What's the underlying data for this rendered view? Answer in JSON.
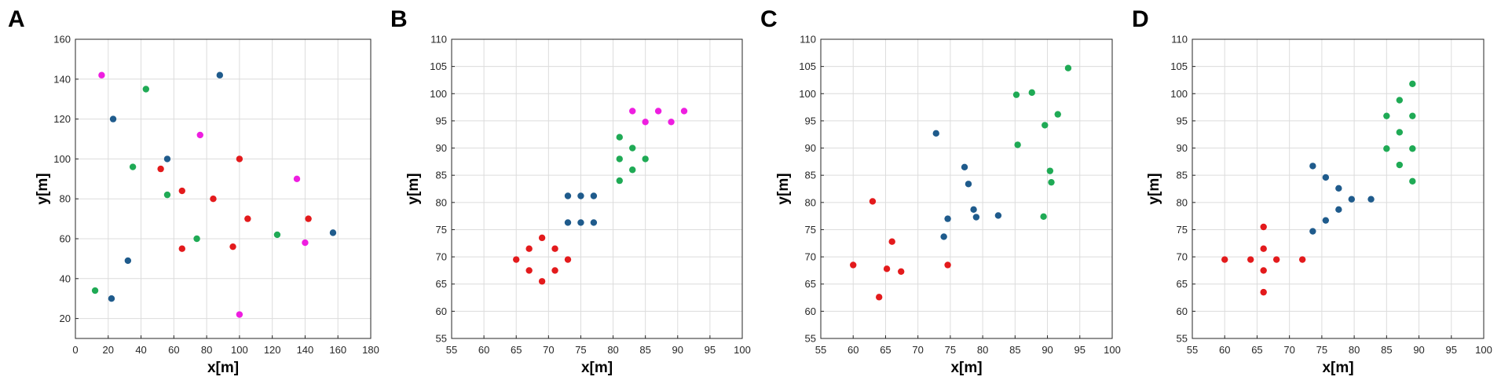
{
  "colors": {
    "red": "#e31a1c",
    "blue": "#1f5b8c",
    "green": "#1faa55",
    "magenta": "#ee1ee0"
  },
  "chart_data": [
    {
      "type": "scatter",
      "panel": "A",
      "xlabel": "x[m]",
      "ylabel": "y[m]",
      "xlim": [
        0,
        180
      ],
      "ylim": [
        10,
        160
      ],
      "xticks": [
        0,
        20,
        40,
        60,
        80,
        100,
        120,
        140,
        160,
        180
      ],
      "yticks": [
        20,
        40,
        60,
        80,
        100,
        120,
        140,
        160
      ],
      "grid": true,
      "series": [
        {
          "name": "red",
          "color": "red",
          "points": [
            [
              52,
              95
            ],
            [
              65,
              84
            ],
            [
              84,
              80
            ],
            [
              100,
              100
            ],
            [
              105,
              70
            ],
            [
              65,
              55
            ],
            [
              96,
              56
            ],
            [
              142,
              70
            ]
          ]
        },
        {
          "name": "blue",
          "color": "blue",
          "points": [
            [
              23,
              120
            ],
            [
              56,
              100
            ],
            [
              88,
              142
            ],
            [
              32,
              49
            ],
            [
              22,
              30
            ],
            [
              157,
              63
            ]
          ]
        },
        {
          "name": "green",
          "color": "green",
          "points": [
            [
              43,
              135
            ],
            [
              35,
              96
            ],
            [
              56,
              82
            ],
            [
              74,
              60
            ],
            [
              123,
              62
            ],
            [
              12,
              34
            ]
          ]
        },
        {
          "name": "magenta",
          "color": "magenta",
          "points": [
            [
              16,
              142
            ],
            [
              76,
              112
            ],
            [
              135,
              90
            ],
            [
              140,
              58
            ],
            [
              100,
              22
            ]
          ]
        }
      ]
    },
    {
      "type": "scatter",
      "panel": "B",
      "xlabel": "x[m]",
      "ylabel": "y[m]",
      "xlim": [
        55,
        100
      ],
      "ylim": [
        55,
        110
      ],
      "xticks": [
        55,
        60,
        65,
        70,
        75,
        80,
        85,
        90,
        95,
        100
      ],
      "yticks": [
        55,
        60,
        65,
        70,
        75,
        80,
        85,
        90,
        95,
        100,
        105,
        110
      ],
      "grid": true,
      "series": [
        {
          "name": "red",
          "color": "red",
          "points": [
            [
              65,
              69.5
            ],
            [
              67,
              71.5
            ],
            [
              67,
              67.5
            ],
            [
              69,
              73.5
            ],
            [
              69,
              65.5
            ],
            [
              71,
              71.5
            ],
            [
              71,
              67.5
            ],
            [
              73,
              69.5
            ]
          ]
        },
        {
          "name": "blue",
          "color": "blue",
          "points": [
            [
              73,
              81.2
            ],
            [
              75,
              81.2
            ],
            [
              77,
              81.2
            ],
            [
              73,
              76.3
            ],
            [
              75,
              76.3
            ],
            [
              77,
              76.3
            ]
          ]
        },
        {
          "name": "green",
          "color": "green",
          "points": [
            [
              81,
              92
            ],
            [
              81,
              88
            ],
            [
              81,
              84
            ],
            [
              83,
              90
            ],
            [
              83,
              86
            ],
            [
              85,
              88
            ]
          ]
        },
        {
          "name": "magenta",
          "color": "magenta",
          "points": [
            [
              83,
              96.8
            ],
            [
              85,
              94.8
            ],
            [
              87,
              96.8
            ],
            [
              89,
              94.8
            ],
            [
              91,
              96.8
            ]
          ]
        }
      ]
    },
    {
      "type": "scatter",
      "panel": "C",
      "xlabel": "x[m]",
      "ylabel": "y[m]",
      "xlim": [
        55,
        100
      ],
      "ylim": [
        55,
        110
      ],
      "xticks": [
        55,
        60,
        65,
        70,
        75,
        80,
        85,
        90,
        95,
        100
      ],
      "yticks": [
        55,
        60,
        65,
        70,
        75,
        80,
        85,
        90,
        95,
        100,
        105,
        110
      ],
      "grid": true,
      "series": [
        {
          "name": "red",
          "color": "red",
          "points": [
            [
              60,
              68.5
            ],
            [
              63,
              80.2
            ],
            [
              64,
              62.6
            ],
            [
              65.2,
              67.8
            ],
            [
              66,
              72.8
            ],
            [
              67.4,
              67.3
            ],
            [
              74.6,
              68.5
            ]
          ]
        },
        {
          "name": "blue",
          "color": "blue",
          "points": [
            [
              72.8,
              92.7
            ],
            [
              74,
              73.7
            ],
            [
              74.6,
              77
            ],
            [
              77.2,
              86.5
            ],
            [
              77.8,
              83.4
            ],
            [
              78.6,
              78.7
            ],
            [
              79,
              77.3
            ],
            [
              82.4,
              77.6
            ]
          ]
        },
        {
          "name": "green",
          "color": "green",
          "points": [
            [
              85.2,
              99.8
            ],
            [
              85.4,
              90.6
            ],
            [
              87.6,
              100.2
            ],
            [
              89.6,
              94.2
            ],
            [
              89.4,
              77.4
            ],
            [
              90.4,
              85.8
            ],
            [
              90.6,
              83.7
            ],
            [
              91.6,
              96.2
            ],
            [
              93.2,
              104.7
            ]
          ]
        }
      ]
    },
    {
      "type": "scatter",
      "panel": "D",
      "xlabel": "x[m]",
      "ylabel": "y[m]",
      "xlim": [
        55,
        100
      ],
      "ylim": [
        55,
        110
      ],
      "xticks": [
        55,
        60,
        65,
        70,
        75,
        80,
        85,
        90,
        95,
        100
      ],
      "yticks": [
        55,
        60,
        65,
        70,
        75,
        80,
        85,
        90,
        95,
        100,
        105,
        110
      ],
      "grid": true,
      "series": [
        {
          "name": "red",
          "color": "red",
          "points": [
            [
              60,
              69.5
            ],
            [
              64,
              69.5
            ],
            [
              66,
              75.5
            ],
            [
              66,
              71.5
            ],
            [
              66,
              67.5
            ],
            [
              66,
              63.5
            ],
            [
              68,
              69.5
            ],
            [
              72,
              69.5
            ]
          ]
        },
        {
          "name": "blue",
          "color": "blue",
          "points": [
            [
              73.6,
              74.7
            ],
            [
              73.6,
              86.7
            ],
            [
              75.6,
              84.6
            ],
            [
              75.6,
              76.7
            ],
            [
              77.6,
              82.6
            ],
            [
              77.6,
              78.7
            ],
            [
              79.6,
              80.6
            ],
            [
              82.6,
              80.6
            ]
          ]
        },
        {
          "name": "green",
          "color": "green",
          "points": [
            [
              85,
              89.9
            ],
            [
              85,
              95.9
            ],
            [
              87,
              98.8
            ],
            [
              87,
              92.9
            ],
            [
              87,
              86.9
            ],
            [
              89,
              101.8
            ],
            [
              89,
              95.9
            ],
            [
              89,
              89.9
            ],
            [
              89,
              83.9
            ]
          ]
        }
      ]
    }
  ]
}
